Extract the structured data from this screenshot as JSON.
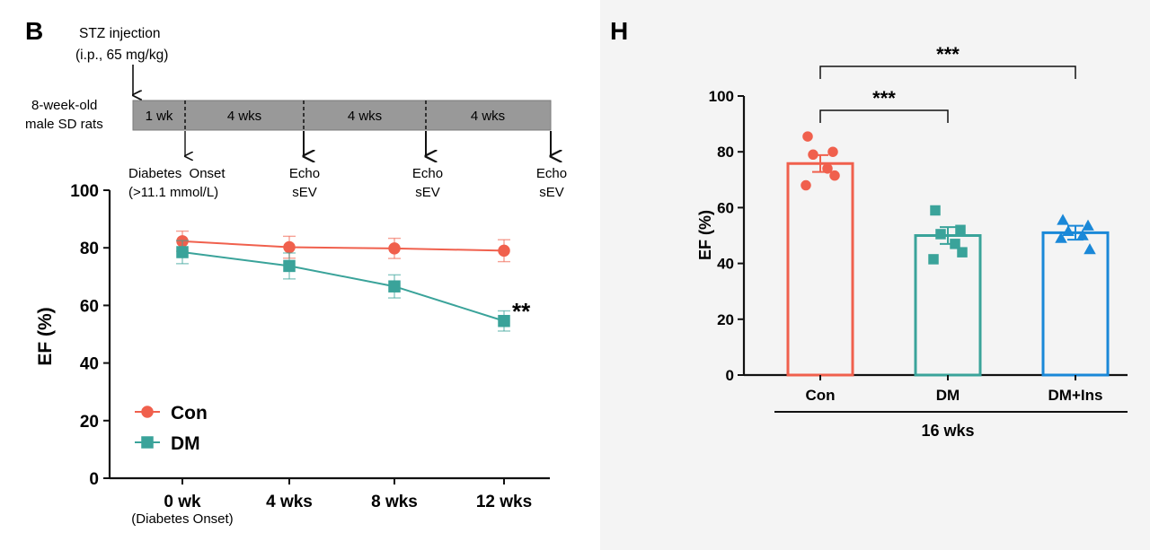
{
  "panel_b": {
    "letter": "B",
    "timeline": {
      "injection_label_line1": "STZ injection",
      "injection_label_line2": "(i.p., 65 mg/kg)",
      "subject_line1": "8-week-old",
      "subject_line2": "male SD rats",
      "segments": [
        "1 wk",
        "4 wks",
        "4 wks",
        "4 wks"
      ],
      "onset_line1": "Diabetes  Onset",
      "onset_line2": "(>11.1 mmol/L)",
      "echo_markers": [
        {
          "line1": "Echo",
          "line2": "sEV"
        },
        {
          "line1": "Echo",
          "line2": "sEV"
        },
        {
          "line1": "Echo",
          "line2": "sEV"
        }
      ],
      "bar_color": "#999999"
    }
  },
  "panel_h": {
    "letter": "H",
    "group_label": "16 wks",
    "significance": [
      "***",
      "***"
    ]
  },
  "chart_data": [
    {
      "id": "line-chart",
      "type": "line",
      "categories": [
        "0 wk",
        "4 wks",
        "8 wks",
        "12 wks"
      ],
      "x_sublabel": "(Diabetes Onset)",
      "ylabel": "EF (%)",
      "ylim": [
        0,
        100
      ],
      "yticks": [
        0,
        20,
        40,
        60,
        80,
        100
      ],
      "annotation": "**",
      "legend_position": "lower-left",
      "series": [
        {
          "name": "Con",
          "marker": "circle",
          "color": "#f0604d",
          "values": [
            82.3,
            80.2,
            79.8,
            79.0
          ],
          "errors": [
            3.5,
            3.8,
            3.5,
            3.8
          ]
        },
        {
          "name": "DM",
          "marker": "square",
          "color": "#3aa39a",
          "values": [
            78.5,
            73.7,
            66.6,
            54.6
          ],
          "errors": [
            4.0,
            4.5,
            4.0,
            3.5
          ]
        }
      ]
    },
    {
      "id": "bar-chart",
      "type": "bar",
      "categories": [
        "Con",
        "DM",
        "DM+Ins"
      ],
      "ylabel": "EF (%)",
      "ylim": [
        0,
        100
      ],
      "yticks": [
        0,
        20,
        40,
        60,
        80,
        100
      ],
      "colors": [
        "#f0604d",
        "#3aa39a",
        "#1a88d8"
      ],
      "markers": [
        "circle",
        "square",
        "triangle"
      ],
      "values": [
        75.8,
        50.0,
        51.0
      ],
      "errors": [
        3.0,
        3.0,
        2.5
      ],
      "points": [
        [
          85.5,
          80.0,
          79.0,
          74.0,
          68.0,
          71.5
        ],
        [
          59.0,
          52.0,
          50.5,
          47.0,
          41.5,
          44.0
        ],
        [
          55.5,
          53.5,
          51.5,
          50.0,
          49.0,
          45.0
        ]
      ]
    }
  ]
}
